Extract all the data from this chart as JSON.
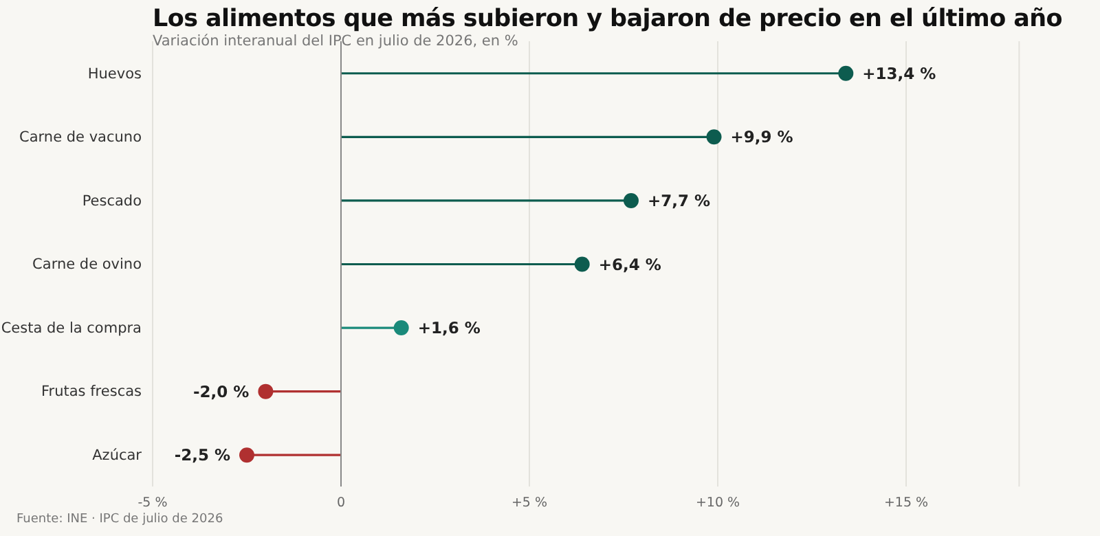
{
  "chart_data": {
    "type": "lollipop",
    "orientation": "horizontal",
    "title": "Los alimentos que más subieron y bajaron de precio en el último año",
    "subtitle": "Variación interanual del IPC en julio de 2026, en %",
    "categories": [
      "Huevos",
      "Carne de vacuno",
      "Pescado",
      "Carne de ovino",
      "Cesta de la compra",
      "Frutas frescas",
      "Azúcar"
    ],
    "values": [
      13.4,
      9.9,
      7.7,
      6.4,
      1.6,
      -2.0,
      -2.5
    ],
    "colors": [
      "#0d5c4f",
      "#0d5c4f",
      "#0d5c4f",
      "#0d5c4f",
      "#1a8a7a",
      "#b03030",
      "#b03030"
    ],
    "value_labels": [
      "+13,4 %",
      "+9,9 %",
      "+7,7 %",
      "+6,4 %",
      "+1,6 %",
      "-2,0 %",
      "-2,5 %"
    ],
    "xlim": [
      -5,
      18
    ],
    "xticks": [
      {
        "value": -5,
        "label": "-5 %"
      },
      {
        "value": 0,
        "label": "0"
      },
      {
        "value": 5,
        "label": "+5 %"
      },
      {
        "value": 10,
        "label": "+10 %"
      },
      {
        "value": 15,
        "label": "+15 %"
      }
    ],
    "ref_lines": [
      {
        "axis": "x",
        "value": 0,
        "color": "#888888"
      }
    ],
    "grid": "x",
    "legend": false,
    "annotations": [
      "Fuente: INE · IPC de julio de 2026"
    ]
  }
}
